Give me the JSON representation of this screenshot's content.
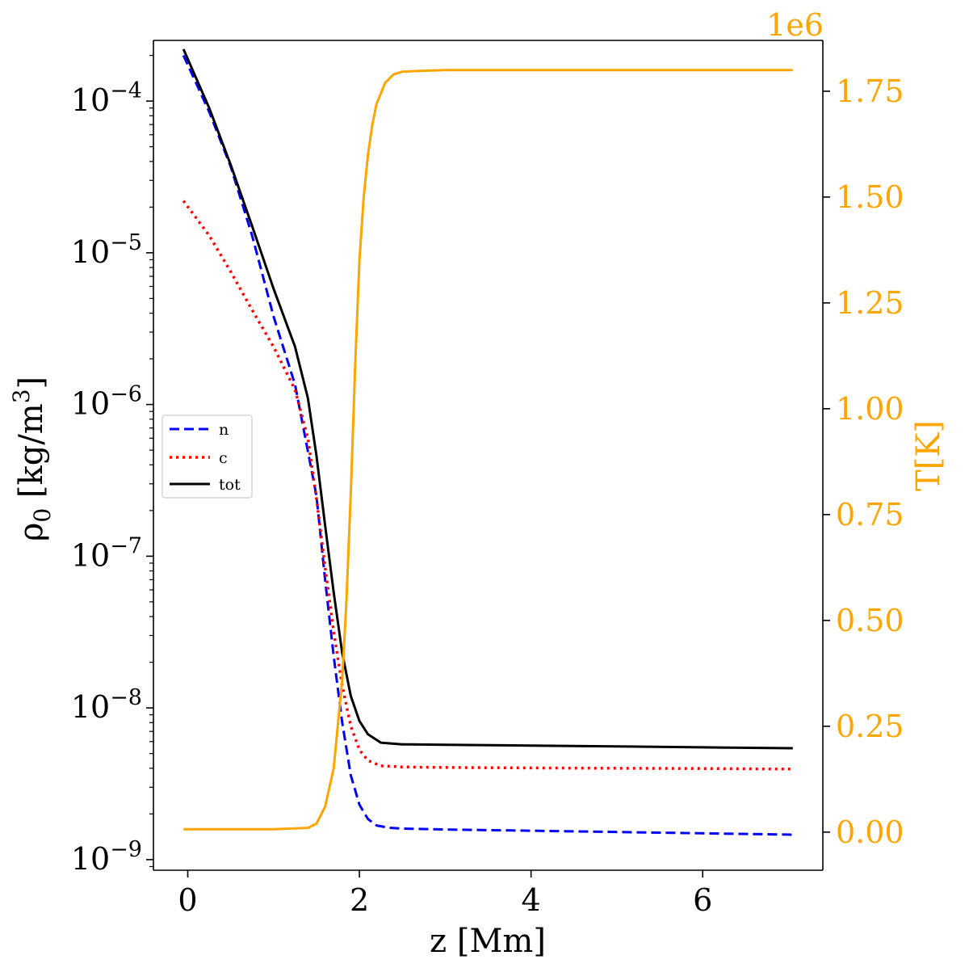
{
  "colors": {
    "n": "#0000ff",
    "c": "#ff0000",
    "tot": "#000000",
    "T": "#ffa500",
    "axis": "#000000"
  },
  "chart_data": {
    "type": "line",
    "x_axis": {
      "label": "z [Mm]",
      "ticks": [
        0,
        2,
        4,
        6
      ],
      "tick_labels": [
        "0",
        "2",
        "4",
        "6"
      ],
      "range": [
        -0.4,
        7.4
      ]
    },
    "y_left": {
      "label": "ρ0 [kg/m3]",
      "label_base": "ρ",
      "label_sub": "0",
      "label_rest": " [kg/m",
      "label_sup": "3",
      "label_close": "]",
      "scale": "log",
      "range_log10": [
        -9.07,
        -3.6
      ],
      "ticks_log10": [
        -9,
        -8,
        -7,
        -6,
        -5,
        -4
      ],
      "tick_base": "10",
      "tick_exponents": [
        "−9",
        "−8",
        "−7",
        "−6",
        "−5",
        "−4"
      ]
    },
    "y_right": {
      "label": "T[K]",
      "multiplier": "1e6",
      "range": [
        -0.09,
        1.87
      ],
      "ticks": [
        0.0,
        0.25,
        0.5,
        0.75,
        1.0,
        1.25,
        1.5,
        1.75
      ],
      "tick_labels": [
        "0.00",
        "0.25",
        "0.50",
        "0.75",
        "1.00",
        "1.25",
        "1.50",
        "1.75"
      ]
    },
    "legend": {
      "position": "center-left",
      "entries": [
        {
          "key": "n",
          "label": "n",
          "style": "dashed"
        },
        {
          "key": "c",
          "label": "c",
          "style": "dotted"
        },
        {
          "key": "tot",
          "label": "tot",
          "style": "solid"
        }
      ]
    },
    "series": [
      {
        "name": "n",
        "axis": "left",
        "style": "dashed",
        "x": [
          -0.05,
          0.25,
          0.5,
          0.75,
          1.0,
          1.25,
          1.5,
          1.6,
          1.7,
          1.8,
          1.9,
          2.0,
          2.1,
          2.2,
          2.35,
          2.5,
          3.0,
          4.0,
          5.0,
          6.0,
          7.05
        ],
        "y": [
          0.0002,
          8.5e-05,
          3.7e-05,
          1.3e-05,
          3.8e-06,
          1.35e-06,
          2.5e-07,
          7e-08,
          2.2e-08,
          8e-09,
          3.6e-09,
          2.3e-09,
          1.85e-09,
          1.68e-09,
          1.62e-09,
          1.6e-09,
          1.58e-09,
          1.55e-09,
          1.52e-09,
          1.49e-09,
          1.46e-09
        ]
      },
      {
        "name": "c",
        "axis": "left",
        "style": "dotted",
        "x": [
          -0.05,
          0.25,
          0.5,
          0.75,
          1.0,
          1.25,
          1.4,
          1.5,
          1.6,
          1.7,
          1.8,
          1.9,
          2.0,
          2.1,
          2.25,
          2.5,
          3.0,
          4.0,
          5.0,
          6.0,
          7.05
        ],
        "y": [
          2.2e-05,
          1.3e-05,
          7.5e-06,
          4.2e-06,
          2.4e-06,
          1.25e-06,
          6e-07,
          2.4e-07,
          8.5e-08,
          3.2e-08,
          1.4e-08,
          7.6e-09,
          5.3e-09,
          4.5e-09,
          4.15e-09,
          4.08e-09,
          4.05e-09,
          4.02e-09,
          4e-09,
          3.98e-09,
          3.95e-09
        ]
      },
      {
        "name": "tot",
        "axis": "left",
        "style": "solid",
        "x": [
          -0.05,
          0.25,
          0.5,
          0.75,
          1.0,
          1.25,
          1.4,
          1.5,
          1.6,
          1.7,
          1.8,
          1.9,
          2.0,
          2.1,
          2.25,
          2.5,
          3.0,
          4.0,
          5.0,
          6.0,
          7.05
        ],
        "y": [
          0.00022,
          9e-05,
          3.8e-05,
          1.5e-05,
          5.8e-06,
          2.4e-06,
          1.1e-06,
          4.6e-07,
          1.6e-07,
          5.8e-08,
          2.3e-08,
          1.2e-08,
          8.2e-09,
          6.7e-09,
          5.9e-09,
          5.75e-09,
          5.72e-09,
          5.65e-09,
          5.58e-09,
          5.5e-09,
          5.42e-09
        ]
      },
      {
        "name": "T",
        "axis": "right",
        "style": "solid",
        "x": [
          -0.05,
          1.0,
          1.4,
          1.5,
          1.6,
          1.7,
          1.8,
          1.85,
          1.9,
          1.95,
          2.0,
          2.05,
          2.1,
          2.15,
          2.2,
          2.3,
          2.4,
          2.5,
          2.7,
          3.0,
          5.0,
          7.05
        ],
        "y": [
          0.007,
          0.007,
          0.01,
          0.02,
          0.06,
          0.15,
          0.36,
          0.55,
          0.8,
          1.1,
          1.35,
          1.5,
          1.6,
          1.67,
          1.72,
          1.77,
          1.79,
          1.796,
          1.798,
          1.8,
          1.8,
          1.8
        ]
      }
    ]
  }
}
